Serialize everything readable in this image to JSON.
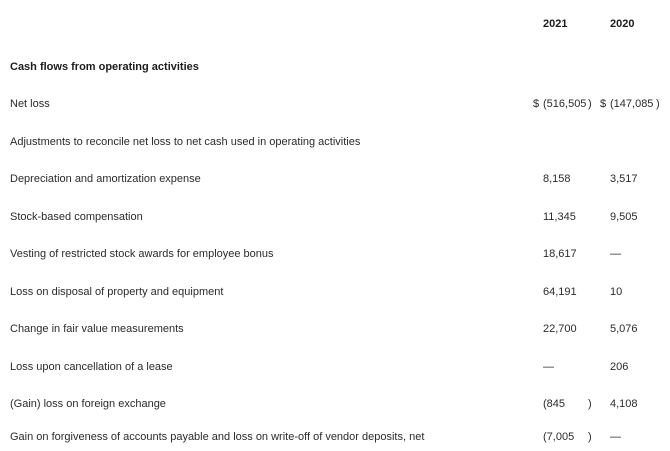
{
  "theme": {
    "background_color": "#ffffff",
    "text_color": "#2b2b2b",
    "bold_text_color": "#1c1c1c"
  },
  "statement": {
    "columns": [
      "2021",
      "2020"
    ],
    "section_header": "Cash flows from operating activities",
    "rows": [
      {
        "label": "Net loss",
        "dollar_2021": "$",
        "value_2021": "(516,505",
        "paren_2021": ")",
        "dollar_2020": "$",
        "value_2020": "(147,085",
        "paren_2020": ")"
      },
      {
        "label": "Adjustments to reconcile net loss to net cash used in operating activities"
      },
      {
        "label": "Depreciation and amortization expense",
        "value_2021": "8,158",
        "value_2020": "3,517"
      },
      {
        "label": "Stock-based compensation",
        "value_2021": "11,345",
        "value_2020": "9,505"
      },
      {
        "label": "Vesting of restricted stock awards for employee bonus",
        "value_2021": "18,617",
        "value_2020": "—"
      },
      {
        "label": "Loss on disposal of property and equipment",
        "value_2021": "64,191",
        "value_2020": "10"
      },
      {
        "label": "Change in fair value measurements",
        "value_2021": "22,700",
        "value_2020": "5,076"
      },
      {
        "label": "Loss upon cancellation of a lease",
        "value_2021": "—",
        "value_2020": "206"
      },
      {
        "label": "(Gain) loss on foreign exchange",
        "value_2021": "(845",
        "paren_2021": ")",
        "value_2020": "4,108"
      },
      {
        "label": "Gain on forgiveness of accounts payable and loss on write-off of vendor deposits, net",
        "value_2021": "(7,005",
        "paren_2021": ")",
        "value_2020": "—"
      }
    ]
  }
}
